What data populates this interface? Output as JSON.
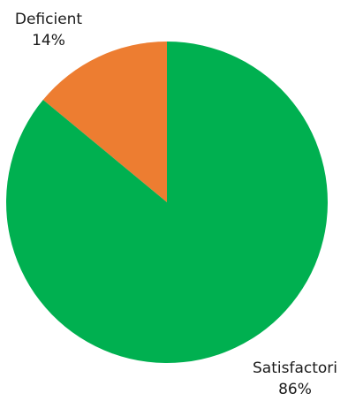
{
  "chart_data": {
    "type": "pie",
    "title": "",
    "categories": [
      "Deficient",
      "Satisfactori"
    ],
    "values": [
      14,
      86
    ],
    "value_labels": [
      "14%",
      "86%"
    ],
    "colors": [
      "#ED7D31",
      "#00B050"
    ],
    "start": "12 o'clock",
    "direction": "counterclockwise-from-top for first slice",
    "legend": "none"
  }
}
